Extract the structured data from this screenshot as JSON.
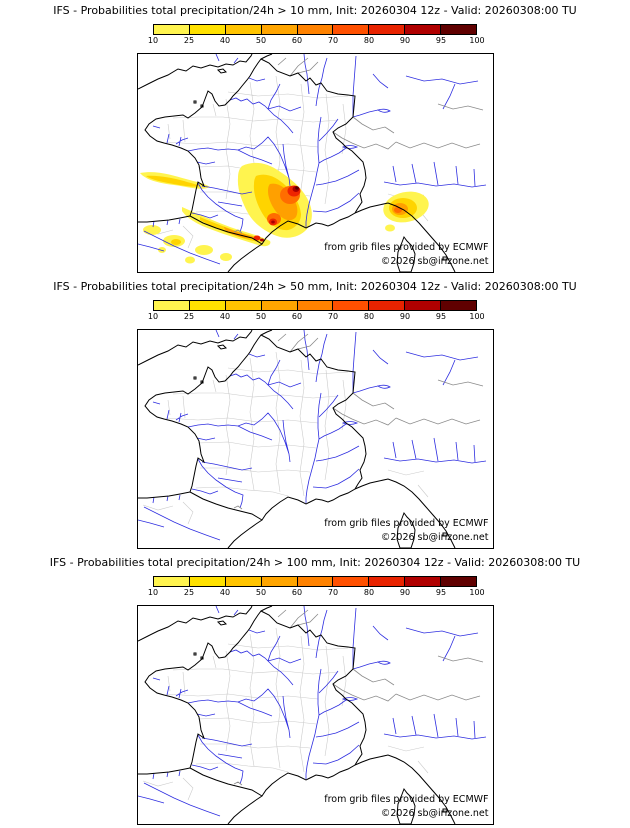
{
  "page": {
    "background": "#ffffff"
  },
  "panels": [
    {
      "threshold": "10 mm",
      "title": "IFS - Probabilities total precipitation/24h > 10 mm, Init: 20260304 12z - Valid: 20260308:00 TU",
      "credit": "from grib files provided by ECMWF",
      "copyright": "©2026 sb@irizone.net"
    },
    {
      "threshold": "50 mm",
      "title": "IFS - Probabilities total precipitation/24h > 50 mm, Init: 20260304 12z - Valid: 20260308:00 TU",
      "credit": "from grib files provided by ECMWF",
      "copyright": "©2026 sb@irizone.net"
    },
    {
      "threshold": "100 mm",
      "title": "IFS - Probabilities total precipitation/24h > 100 mm, Init: 20260304 12z - Valid: 20260308:00 TU",
      "credit": "from grib files provided by ECMWF",
      "copyright": "©2026 sb@irizone.net"
    }
  ],
  "colorbar": {
    "tick_labels": [
      "10",
      "25",
      "40",
      "50",
      "60",
      "70",
      "80",
      "90",
      "95",
      "100"
    ],
    "segment_colors": [
      "#fff44f",
      "#ffe100",
      "#ffc400",
      "#ffa500",
      "#ff8200",
      "#ff5000",
      "#e82300",
      "#b00000",
      "#600000"
    ]
  },
  "overlay": {
    "l1": "#fff44f",
    "l2": "#ffd400",
    "l3": "#ffa000",
    "l4": "#ff6d00",
    "l5": "#ee2400",
    "l6": "#a80000",
    "l7": "#560000"
  },
  "map_colors": {
    "coastline": "#000000",
    "country_border": "#8a8a8a",
    "department_border": "#cbcbcb",
    "river": "#2e2ee0"
  }
}
